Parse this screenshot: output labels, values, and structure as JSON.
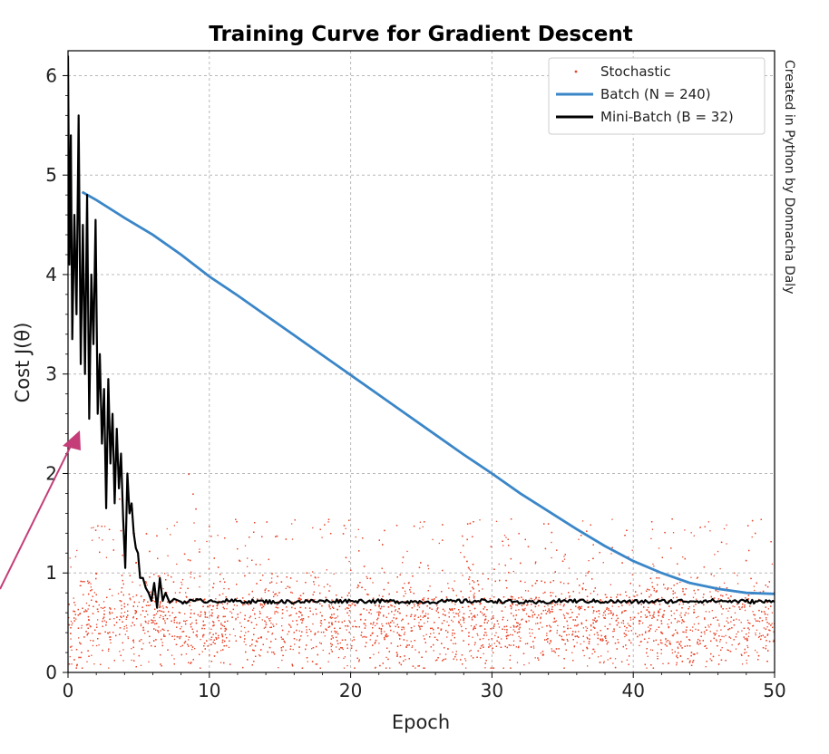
{
  "chart_data": {
    "type": "line",
    "title": "Training Curve for Gradient Descent",
    "xlabel": "Epoch",
    "ylabel": "Cost J(θ)",
    "xlim": [
      0,
      50
    ],
    "ylim": [
      0,
      6.25
    ],
    "xticks": [
      0,
      10,
      20,
      30,
      40,
      50
    ],
    "yticks": [
      0,
      1,
      2,
      3,
      4,
      5,
      6
    ],
    "grid": true,
    "legend_position": "top-right",
    "credit": "Created in Python by Donnacha Daly",
    "series": [
      {
        "name": "Stochastic",
        "style": "points",
        "color": "#e8462a",
        "typical_range": [
          0.3,
          1.1
        ],
        "outliers": [
          [
            8.5,
            2.0
          ],
          [
            8.8,
            1.8
          ],
          [
            9.0,
            1.65
          ],
          [
            4.5,
            1.65
          ],
          [
            3.6,
            1.75
          ]
        ]
      },
      {
        "name": "Batch (N = 240)",
        "style": "line",
        "color": "#3a86c8",
        "x": [
          1,
          2,
          4,
          6,
          8,
          10,
          12,
          14,
          16,
          18,
          20,
          22,
          24,
          26,
          28,
          30,
          32,
          34,
          36,
          38,
          40,
          42,
          44,
          46,
          48,
          50
        ],
        "y": [
          4.83,
          4.75,
          4.57,
          4.4,
          4.2,
          3.98,
          3.79,
          3.59,
          3.39,
          3.19,
          2.99,
          2.79,
          2.59,
          2.39,
          2.19,
          2.0,
          1.8,
          1.62,
          1.44,
          1.27,
          1.12,
          1.0,
          0.9,
          0.84,
          0.8,
          0.79
        ]
      },
      {
        "name": "Mini-Batch (B = 32)",
        "style": "line",
        "color": "#000000",
        "x": [
          0,
          0.1,
          0.2,
          0.3,
          0.45,
          0.6,
          0.75,
          0.9,
          1.05,
          1.2,
          1.35,
          1.5,
          1.65,
          1.8,
          1.95,
          2.1,
          2.25,
          2.4,
          2.55,
          2.7,
          2.85,
          3.0,
          3.15,
          3.3,
          3.45,
          3.6,
          3.75,
          3.9,
          4.05,
          4.2,
          4.35,
          4.5,
          4.65,
          4.8,
          4.95,
          5.1,
          5.3,
          5.5,
          5.7,
          5.9,
          6.1,
          6.3,
          6.5,
          6.7,
          6.9,
          7.2,
          7.5,
          8,
          9,
          10,
          15,
          20,
          25,
          30,
          33,
          35,
          40,
          45,
          50
        ],
        "y": [
          6.2,
          4.1,
          5.4,
          3.35,
          4.6,
          3.6,
          5.6,
          3.1,
          4.5,
          3.0,
          4.8,
          2.55,
          4.0,
          3.3,
          4.55,
          2.6,
          3.2,
          2.3,
          2.85,
          1.65,
          2.95,
          2.1,
          2.6,
          1.7,
          2.45,
          1.85,
          2.2,
          1.55,
          1.05,
          2.0,
          1.6,
          1.7,
          1.4,
          1.25,
          1.2,
          0.95,
          0.95,
          0.85,
          0.8,
          0.72,
          0.9,
          0.65,
          0.95,
          0.72,
          0.8,
          0.7,
          0.74,
          0.71,
          0.72,
          0.72,
          0.71,
          0.72,
          0.71,
          0.72,
          0.7,
          0.72,
          0.71,
          0.72,
          0.71
        ]
      }
    ]
  }
}
